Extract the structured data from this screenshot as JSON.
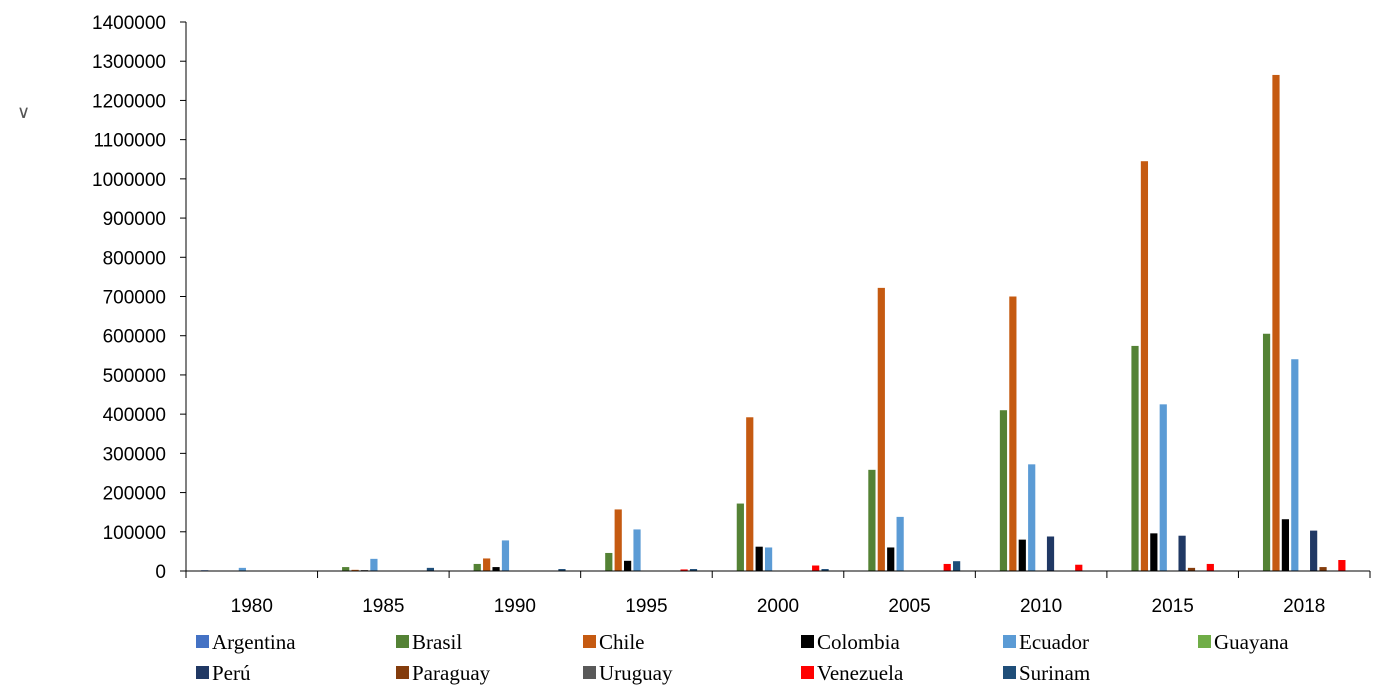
{
  "chart_data": {
    "type": "bar",
    "title": "",
    "xlabel": "",
    "ylabel": "∨",
    "ylim": [
      0,
      1400000
    ],
    "y_ticks": [
      "0",
      "100000",
      "200000",
      "300000",
      "400000",
      "500000",
      "600000",
      "700000",
      "800000",
      "900000",
      "1000000",
      "1100000",
      "1200000",
      "1300000",
      "1400000"
    ],
    "grid": false,
    "legend_position": "bottom",
    "categories": [
      "1980",
      "1985",
      "1990",
      "1995",
      "2000",
      "2005",
      "2010",
      "2015",
      "2018"
    ],
    "series": [
      {
        "name": "Argentina",
        "color": "#4472C4",
        "values": [
          2000,
          1000,
          1000,
          1000,
          1000,
          1000,
          1000,
          1000,
          1000
        ]
      },
      {
        "name": "Brasil",
        "color": "#548235",
        "values": [
          1000,
          10000,
          18000,
          46000,
          172000,
          258000,
          410000,
          574000,
          605000
        ]
      },
      {
        "name": "Chile",
        "color": "#C55A11",
        "values": [
          1000,
          3000,
          32000,
          157000,
          392000,
          722000,
          700000,
          1045000,
          1265000
        ]
      },
      {
        "name": "Colombia",
        "color": "#000000",
        "values": [
          1000,
          2000,
          10000,
          26000,
          62000,
          60000,
          80000,
          96000,
          132000
        ]
      },
      {
        "name": "Ecuador",
        "color": "#5B9BD5",
        "values": [
          8000,
          31000,
          78000,
          106000,
          60000,
          138000,
          272000,
          425000,
          540000
        ]
      },
      {
        "name": "Guayana",
        "color": "#70AD47",
        "values": [
          1000,
          1000,
          1000,
          1000,
          1000,
          1000,
          1000,
          1000,
          1000
        ]
      },
      {
        "name": "Perú",
        "color": "#203864",
        "values": [
          1000,
          1000,
          1000,
          1000,
          1000,
          1000,
          88000,
          90000,
          103000
        ]
      },
      {
        "name": "Paraguay",
        "color": "#843C0C",
        "values": [
          1000,
          1000,
          1000,
          1000,
          1000,
          1000,
          1000,
          8000,
          10000
        ]
      },
      {
        "name": "Uruguay",
        "color": "#595959",
        "values": [
          1000,
          1000,
          1000,
          1000,
          1000,
          1000,
          1000,
          1000,
          1000
        ]
      },
      {
        "name": "Venezuela",
        "color": "#FF0000",
        "values": [
          1000,
          1000,
          1000,
          4000,
          14000,
          18000,
          16000,
          18000,
          28000
        ]
      },
      {
        "name": "Surinam",
        "color": "#1F4E79",
        "values": [
          1000,
          8000,
          5000,
          5000,
          5000,
          25000,
          1000,
          1000,
          1000
        ]
      }
    ]
  }
}
